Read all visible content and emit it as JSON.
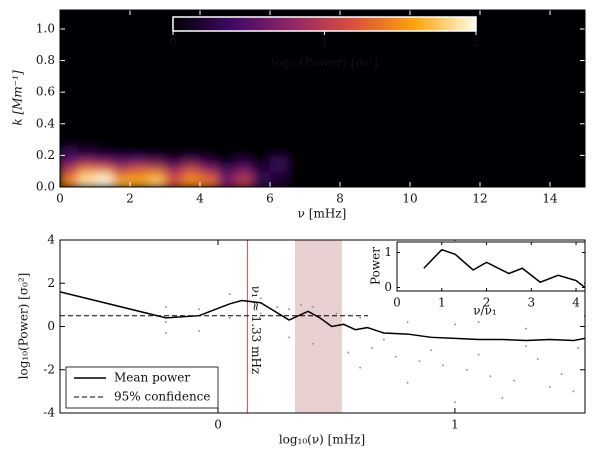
{
  "chart_data": [
    {
      "type": "heatmap",
      "xlabel": "ν [mHz]",
      "ylabel": "k [Mm⁻¹]",
      "xlim": [
        0,
        15
      ],
      "ylim": [
        0,
        1.12
      ],
      "xticks": [
        0,
        2,
        4,
        6,
        8,
        10,
        12,
        14
      ],
      "yticks": [
        {
          "value": 0,
          "label": "0.0"
        },
        0.2,
        0.4,
        0.6,
        0.8,
        {
          "value": 1,
          "label": "1.0"
        }
      ],
      "x_edges": [
        0,
        0.5,
        1,
        1.5,
        2,
        2.5,
        3,
        3.5,
        4,
        4.5,
        5,
        5.5,
        6,
        6.5,
        7
      ],
      "y_edges": [
        0,
        0.05,
        0.1,
        0.15,
        0.2,
        0.25
      ],
      "z": [
        [
          1.5,
          1.9,
          2.0,
          1.7,
          1.6,
          1.8,
          1.2,
          1.5,
          1.4,
          0.7,
          1.0,
          0.3,
          0.2,
          0
        ],
        [
          1.3,
          1.8,
          1.9,
          1.4,
          1.5,
          1.6,
          1.1,
          1.4,
          1.2,
          0.6,
          0.9,
          0.3,
          0.2,
          0
        ],
        [
          0.9,
          1.3,
          1.2,
          0.9,
          1.1,
          1.0,
          0.7,
          1.0,
          0.6,
          0.3,
          0.5,
          0.2,
          0.3,
          0
        ],
        [
          0.5,
          0.6,
          0.5,
          0.4,
          0.4,
          0.3,
          0.2,
          0.3,
          0.2,
          0,
          0.2,
          0,
          0.3,
          0
        ],
        [
          0.3,
          0.2,
          0.1,
          0,
          0,
          0,
          0,
          0,
          0,
          0,
          0,
          0,
          0,
          0
        ]
      ],
      "colorbar": {
        "label": "log₁₀(Power) [σ₀²]",
        "lim": [
          0,
          2
        ],
        "ticks": [
          0,
          1,
          2
        ]
      }
    },
    {
      "type": "line",
      "xlabel": "log₁₀(ν) [mHz]",
      "ylabel": "log₁₀(Power) [σ₀²]",
      "xlim": [
        -0.667,
        1.549
      ],
      "ylim": [
        -4,
        4
      ],
      "xticks": [
        0,
        1
      ],
      "yticks": [
        -4,
        -2,
        0,
        2,
        4
      ],
      "scatter": {
        "color": "#9a9a9a",
        "x": [
          -0.22,
          -0.22,
          -0.22,
          -0.08,
          -0.08,
          0.05,
          0.05,
          0.18,
          0.18,
          0.25,
          0.3,
          0.3,
          0.35,
          0.4,
          0.4,
          0.45,
          0.5,
          0.55,
          0.6,
          0.65,
          0.7,
          0.75,
          0.8,
          0.85,
          0.9,
          0.95,
          1.0,
          1.05,
          1.1,
          1.15,
          1.2,
          1.25,
          1.3,
          1.35,
          1.4,
          1.45,
          1.5,
          1.52,
          0.7,
          0.9,
          1.1,
          1.3,
          1.5,
          1.2,
          1.4,
          0.6,
          0.8,
          1.0
        ],
        "y": [
          0.9,
          -0.3,
          0.2,
          0.8,
          -0.2,
          1.5,
          0.4,
          1.3,
          0.6,
          0.9,
          0.8,
          -0.5,
          1.0,
          0.9,
          -0.8,
          0.5,
          0.6,
          -1.2,
          0.4,
          -1.0,
          0.3,
          -1.4,
          0.2,
          -1.6,
          0.3,
          -1.8,
          0.1,
          -2.0,
          0.2,
          -2.3,
          0.6,
          -2.5,
          -0.1,
          -1.5,
          0.3,
          -2.2,
          0.4,
          -1.0,
          -0.6,
          -1.1,
          -1.3,
          -0.9,
          -3.0,
          -3.3,
          -2.8,
          -1.9,
          -2.6,
          -3.5
        ]
      },
      "series": [
        {
          "name": "Mean power",
          "color": "#000000",
          "x": [
            -0.667,
            -0.22,
            -0.08,
            0.05,
            0.1,
            0.18,
            0.3,
            0.38,
            0.43,
            0.48,
            0.53,
            0.58,
            0.63,
            0.7,
            0.8,
            0.9,
            1.0,
            1.1,
            1.2,
            1.3,
            1.4,
            1.5,
            1.549
          ],
          "values": [
            1.6,
            0.4,
            0.5,
            1.05,
            1.2,
            1.1,
            0.3,
            0.7,
            0.4,
            0.0,
            0.1,
            -0.15,
            -0.05,
            -0.3,
            -0.35,
            -0.5,
            -0.55,
            -0.6,
            -0.6,
            -0.65,
            -0.6,
            -0.65,
            -0.55
          ]
        },
        {
          "name": "95% confidence",
          "color": "#000000",
          "style": "dashed",
          "y": 0.5
        }
      ],
      "vline": {
        "x": 0.124,
        "color": "#d0504a",
        "label": "ν₁ ≈ 1.33 mHz"
      },
      "shaded": {
        "x": [
          0.325,
          0.523
        ],
        "color": "#c98a8a"
      },
      "legend": "lower left"
    },
    {
      "type": "line",
      "xlabel": "ν/ν₁",
      "ylabel": "Power",
      "xlim": [
        0,
        4.2
      ],
      "ylim": [
        -0.1,
        1.3
      ],
      "xticks": [
        0,
        1,
        2,
        3,
        4
      ],
      "yticks": [
        0,
        1
      ],
      "x": [
        0.6,
        1.0,
        1.3,
        1.7,
        2.0,
        2.5,
        2.8,
        3.2,
        3.6,
        4.0,
        4.2
      ],
      "values": [
        0.55,
        1.08,
        0.95,
        0.5,
        0.72,
        0.4,
        0.55,
        0.15,
        0.35,
        0.2,
        0.0
      ],
      "color": "#000000"
    }
  ]
}
